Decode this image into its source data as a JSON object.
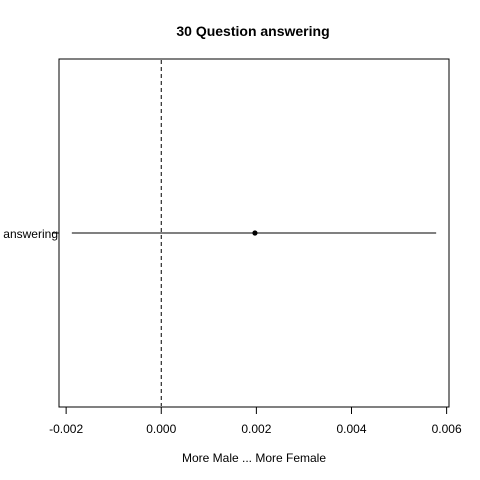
{
  "chart_data": {
    "type": "scatter",
    "title": "30 Question answering",
    "xlabel": "More Male ... More Female",
    "ylabel": "",
    "xlim": [
      -0.00215,
      0.00605
    ],
    "x_ticks": [
      -0.002,
      0.0,
      0.002,
      0.004,
      0.006
    ],
    "x_tick_labels": [
      "-0.002",
      "0.000",
      "0.002",
      "0.004",
      "0.006"
    ],
    "categories": [
      "answering"
    ],
    "points": [
      {
        "category": "answering",
        "estimate": 0.00197,
        "ci_low": -0.00188,
        "ci_high": 0.00578
      }
    ],
    "reference_line": {
      "x": 0.0,
      "style": "dashed"
    },
    "grid": false,
    "legend": "none"
  }
}
